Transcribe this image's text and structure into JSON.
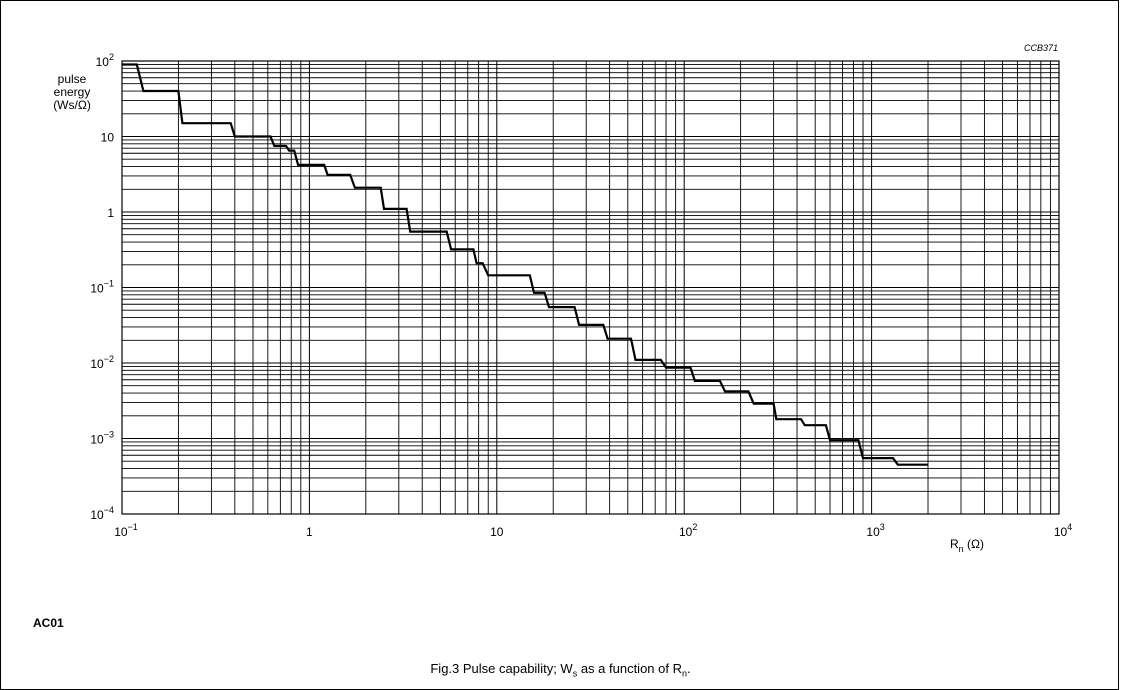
{
  "chart_data": {
    "type": "line",
    "code_label": "CCB371",
    "ylabel_lines": [
      "pulse",
      "energy",
      "(Ws/Ω)"
    ],
    "xlabel": {
      "main": "R",
      "sub": "n",
      "unit": "(Ω)"
    },
    "x_scale": "log",
    "y_scale": "log",
    "xlim": [
      0.1,
      10000
    ],
    "ylim": [
      0.0001,
      100
    ],
    "grid": true,
    "x_ticks": [
      {
        "value": 0.1,
        "base": "10",
        "exp": "−1"
      },
      {
        "value": 1,
        "base": "1",
        "exp": ""
      },
      {
        "value": 10,
        "base": "10",
        "exp": ""
      },
      {
        "value": 100,
        "base": "10",
        "exp": "2"
      },
      {
        "value": 1000,
        "base": "10",
        "exp": "3"
      },
      {
        "value": 10000,
        "base": "10",
        "exp": "4"
      }
    ],
    "y_ticks": [
      {
        "value": 100,
        "base": "10",
        "exp": "2"
      },
      {
        "value": 10,
        "base": "10",
        "exp": ""
      },
      {
        "value": 1,
        "base": "1",
        "exp": ""
      },
      {
        "value": 0.1,
        "base": "10",
        "exp": "−1"
      },
      {
        "value": 0.01,
        "base": "10",
        "exp": "−2"
      },
      {
        "value": 0.001,
        "base": "10",
        "exp": "−3"
      },
      {
        "value": 0.0001,
        "base": "10",
        "exp": "−4"
      }
    ],
    "series": [
      {
        "x": [
          0.1,
          0.12,
          0.13,
          0.2,
          0.21,
          0.38,
          0.4,
          0.62,
          0.65,
          0.75,
          0.78,
          0.83,
          0.87,
          1.2,
          1.25,
          1.65,
          1.75,
          2.4,
          2.5,
          3.3,
          3.45,
          5.4,
          5.7,
          7.5,
          7.8,
          8.4,
          9.0,
          15,
          15.8,
          18,
          19,
          26,
          27.5,
          37,
          39,
          52,
          55,
          75,
          80,
          108,
          114,
          155,
          165,
          220,
          235,
          300,
          310,
          420,
          440,
          570,
          600,
          850,
          900,
          1300,
          1380,
          2000
        ],
        "y": [
          90,
          90,
          40,
          40,
          15,
          15,
          10,
          10,
          7.5,
          7.5,
          6.5,
          6.5,
          4.2,
          4.2,
          3.1,
          3.1,
          2.1,
          2.1,
          1.1,
          1.1,
          0.55,
          0.55,
          0.32,
          0.32,
          0.21,
          0.21,
          0.145,
          0.145,
          0.085,
          0.085,
          0.055,
          0.055,
          0.032,
          0.032,
          0.021,
          0.021,
          0.011,
          0.011,
          0.0087,
          0.0087,
          0.0058,
          0.0058,
          0.0042,
          0.0042,
          0.0029,
          0.0029,
          0.0018,
          0.0018,
          0.0015,
          0.0015,
          0.00095,
          0.00095,
          0.00055,
          0.00055,
          0.00045,
          0.00045
        ]
      }
    ]
  },
  "section_label": "AC01",
  "caption": {
    "prefix": "Fig.3  Pulse capability; W",
    "sub1": "s",
    "middle": " as a function of R",
    "sub2": "n",
    "suffix": "."
  }
}
